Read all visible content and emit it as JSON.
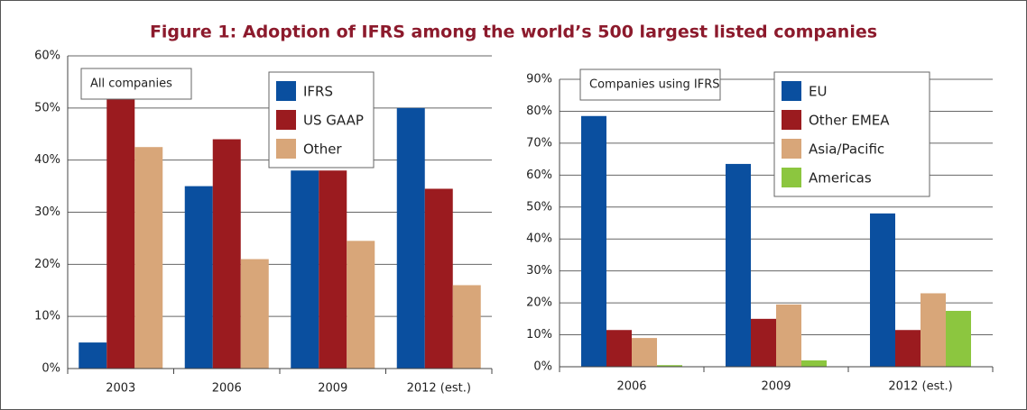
{
  "title": "Figure 1: Adoption of IFRS among the world’s 500 largest listed companies",
  "chart_data": [
    {
      "type": "bar",
      "label": "All companies",
      "categories": [
        "2003",
        "2006",
        "2009",
        "2012 (est.)"
      ],
      "series": [
        {
          "name": "IFRS",
          "color": "#0a4f9f",
          "values": [
            5,
            35,
            38,
            50
          ]
        },
        {
          "name": "US GAAP",
          "color": "#9b1b1f",
          "values": [
            52.5,
            44,
            38,
            34.5
          ]
        },
        {
          "name": "Other",
          "color": "#d8a679",
          "values": [
            42.5,
            21,
            24.5,
            16
          ]
        }
      ],
      "ylim": [
        0,
        60
      ],
      "yticks": [
        {
          "value": 0,
          "label": "0%"
        },
        {
          "value": 10,
          "label": "10%"
        },
        {
          "value": 20,
          "label": "20%"
        },
        {
          "value": 30,
          "label": "30%"
        },
        {
          "value": 40,
          "label": "40%"
        },
        {
          "value": 50,
          "label": "50%"
        },
        {
          "value": 60,
          "label": "60%"
        }
      ],
      "grid": true
    },
    {
      "type": "bar",
      "label": "Companies using IFRS",
      "categories": [
        "2006",
        "2009",
        "2012 (est.)"
      ],
      "series": [
        {
          "name": "EU",
          "color": "#0a4f9f",
          "values": [
            78.5,
            63.5,
            48
          ]
        },
        {
          "name": "Other EMEA",
          "color": "#9b1b1f",
          "values": [
            11.5,
            15,
            11.5
          ]
        },
        {
          "name": "Asia/Pacific",
          "color": "#d8a679",
          "values": [
            9,
            19.5,
            23
          ]
        },
        {
          "name": "Americas",
          "color": "#8cc63f",
          "values": [
            0.5,
            2,
            17.5
          ]
        }
      ],
      "ylim": [
        0,
        90
      ],
      "yticks": [
        {
          "value": 0,
          "label": "0%"
        },
        {
          "value": 10,
          "label": "10%"
        },
        {
          "value": 20,
          "label": "20%"
        },
        {
          "value": 30,
          "label": "30%"
        },
        {
          "value": 40,
          "label": "40%"
        },
        {
          "value": 50,
          "label": "50%"
        },
        {
          "value": 60,
          "label": "60%"
        },
        {
          "value": 70,
          "label": "70%"
        },
        {
          "value": 80,
          "label": "80%"
        },
        {
          "value": 90,
          "label": "90%"
        }
      ],
      "grid": true
    }
  ]
}
